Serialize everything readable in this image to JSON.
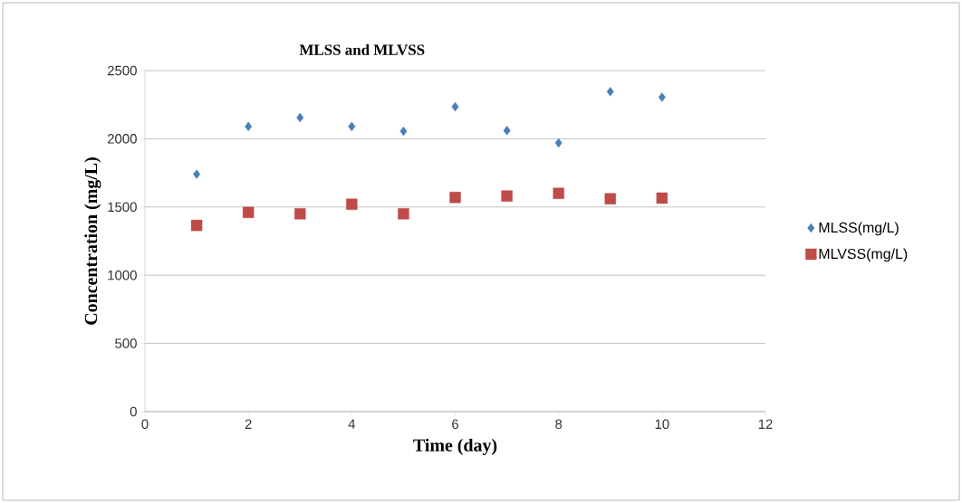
{
  "chart_data": {
    "type": "scatter",
    "title": "MLSS and MLVSS",
    "xlabel": "Time (day)",
    "ylabel": "Concentration (mg/L)",
    "x": [
      1,
      2,
      3,
      4,
      5,
      6,
      7,
      8,
      9,
      10
    ],
    "series": [
      {
        "name": "MLSS(mg/L)",
        "color": "#4a7ebb",
        "marker": "diamond",
        "values": [
          1740,
          2090,
          2155,
          2090,
          2055,
          2235,
          2060,
          1970,
          2345,
          2305
        ]
      },
      {
        "name": "MLVSS(mg/L)",
        "color": "#be4b48",
        "marker": "square",
        "values": [
          1365,
          1460,
          1450,
          1520,
          1450,
          1570,
          1580,
          1600,
          1560,
          1565
        ]
      }
    ],
    "xlim": [
      0,
      12
    ],
    "xticks": [
      0,
      2,
      4,
      6,
      8,
      10,
      12
    ],
    "ylim": [
      0,
      2500
    ],
    "yticks": [
      0,
      500,
      1000,
      1500,
      2000,
      2500
    ],
    "grid": "y",
    "legend": "right"
  }
}
